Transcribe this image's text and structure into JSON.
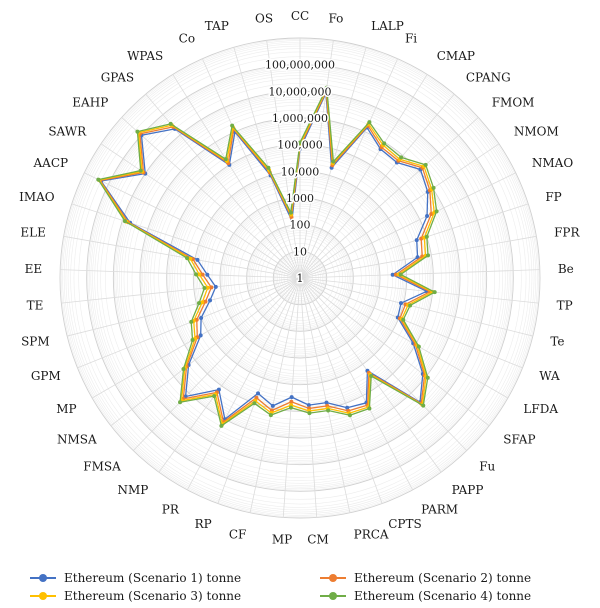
{
  "chart_data": {
    "type": "radar",
    "scale": "log",
    "rlim": [
      1,
      1000000000
    ],
    "tick_labels": [
      "1",
      "10",
      "100",
      "1000",
      "10,000",
      "100,000",
      "1,000,000",
      "10,000,000",
      "100,000,000"
    ],
    "categories": [
      "CC",
      "Fo",
      "LALP",
      "Fi",
      "CMAP",
      "CPANG",
      "FMOM",
      "NMOM",
      "NMAO",
      "FP",
      "FPR",
      "Be",
      "TP",
      "Te",
      "WA",
      "LFDA",
      "SFAP",
      "Fu",
      "PAPP",
      "PARM",
      "CPTS",
      "PRCA",
      "CM",
      "MP",
      "CF",
      "RP",
      "PR",
      "NMP",
      "FMSA",
      "NMSA",
      "MP",
      "GPM",
      "SPM",
      "TE",
      "EE",
      "ELE",
      "IMAO",
      "AACP",
      "SAWR",
      "EAHP",
      "GPAS",
      "WPAS",
      "Co",
      "TAP",
      "OS"
    ],
    "series": [
      {
        "name": "Ethereum (Scenario 1) tonne",
        "color": "#4472C4",
        "values": [
          70000,
          10000000,
          20000,
          1500000,
          500000,
          450000,
          1200000,
          600000,
          200000,
          40000,
          30000,
          3000,
          60000,
          8000,
          9000,
          80000,
          700000,
          3000000,
          20000,
          200000,
          150000,
          60000,
          60000,
          30000,
          80000,
          40000,
          1000000,
          150000,
          1500000,
          200000,
          20000,
          10000,
          3000,
          1500,
          3000,
          8000,
          5000000,
          200000000,
          10000000,
          100000000,
          20000000,
          100000,
          1000000,
          10000,
          150
        ]
      },
      {
        "name": "Ethereum (Scenario 2) tonne",
        "color": "#ED7D31",
        "values": [
          85000,
          12000000,
          25000,
          1800000,
          600000,
          550000,
          1500000,
          750000,
          300000,
          60000,
          45000,
          4000,
          80000,
          12000,
          11000,
          100000,
          850000,
          3500000,
          25000,
          250000,
          200000,
          80000,
          80000,
          45000,
          120000,
          60000,
          1300000,
          200000,
          2000000,
          250000,
          28000,
          15000,
          4500,
          2200,
          4500,
          12000,
          6000000,
          220000000,
          12000000,
          120000000,
          25000000,
          120000,
          1300000,
          13000,
          200
        ]
      },
      {
        "name": "Ethereum (Scenario 3) tonne",
        "color": "#FFC000",
        "values": [
          100000,
          14000000,
          30000,
          2100000,
          750000,
          650000,
          1800000,
          900000,
          400000,
          80000,
          60000,
          5000,
          100000,
          15000,
          13000,
          120000,
          1000000,
          4000000,
          30000,
          300000,
          250000,
          100000,
          100000,
          60000,
          150000,
          80000,
          1600000,
          250000,
          2500000,
          300000,
          35000,
          20000,
          6000,
          3000,
          6000,
          15000,
          7000000,
          240000000,
          14000000,
          140000000,
          30000000,
          150000,
          1500000,
          16000,
          250
        ]
      },
      {
        "name": "Ethereum (Scenario 4) tonne",
        "color": "#70AD47",
        "values": [
          120000,
          16000000,
          35000,
          2500000,
          900000,
          800000,
          2200000,
          1100000,
          500000,
          100000,
          75000,
          6000,
          120000,
          18000,
          15000,
          140000,
          1200000,
          4500000,
          35000,
          350000,
          300000,
          120000,
          120000,
          75000,
          180000,
          100000,
          1900000,
          300000,
          3000000,
          350000,
          45000,
          25000,
          8000,
          4000,
          8000,
          20000,
          8000000,
          260000000,
          16000000,
          160000000,
          35000000,
          180000,
          1800000,
          20000,
          300
        ]
      }
    ],
    "legend_position": "bottom",
    "grid": true
  }
}
